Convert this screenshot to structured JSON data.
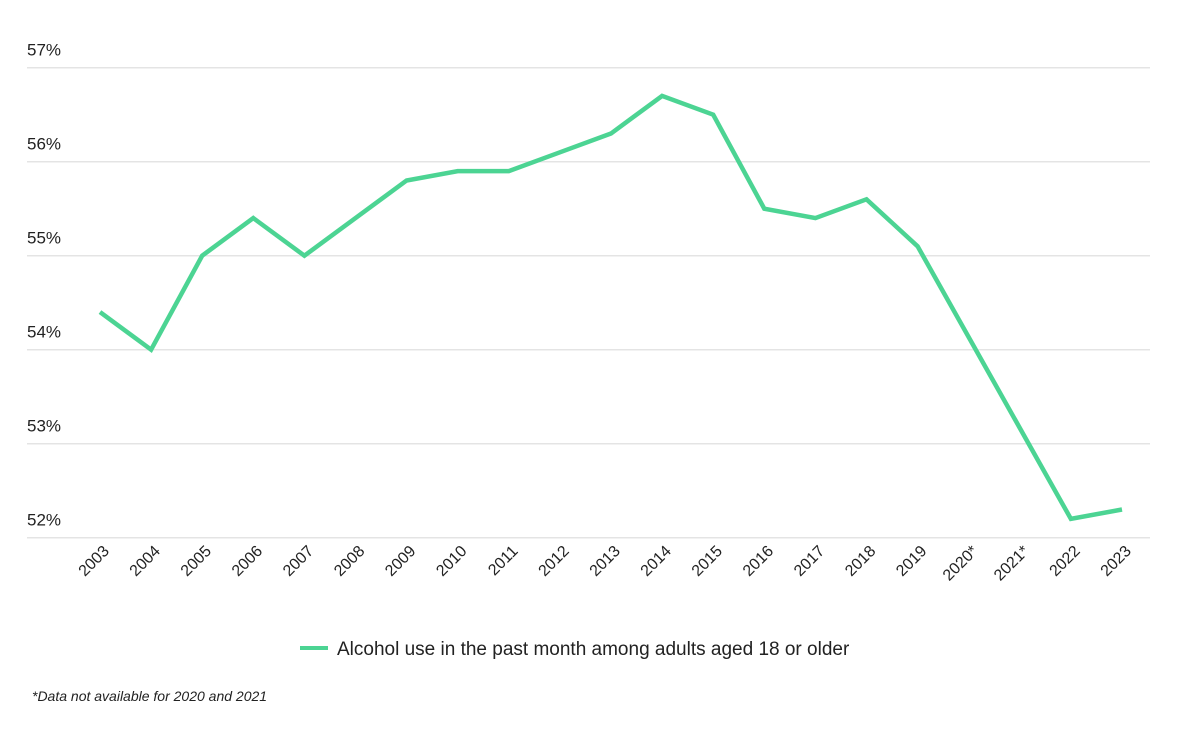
{
  "chart_data": {
    "type": "line",
    "title": "",
    "xlabel": "",
    "ylabel": "",
    "categories": [
      "2003",
      "2004",
      "2005",
      "2006",
      "2007",
      "2008",
      "2009",
      "2010",
      "2011",
      "2012",
      "2013",
      "2014",
      "2015",
      "2016",
      "2017",
      "2018",
      "2019",
      "2020*",
      "2021*",
      "2022",
      "2023"
    ],
    "series": [
      {
        "name": "Alcohol use in the past month among adults aged 18 or older",
        "color": "#4cd493",
        "values": [
          54.4,
          54.0,
          55.0,
          55.4,
          55.0,
          55.4,
          55.8,
          55.9,
          55.9,
          56.1,
          56.3,
          56.7,
          56.5,
          55.5,
          55.4,
          55.6,
          55.1,
          null,
          null,
          52.2,
          52.3
        ]
      }
    ],
    "ylim": [
      52,
      57
    ],
    "yticks": [
      52,
      53,
      54,
      55,
      56,
      57
    ],
    "ytick_labels": [
      "52%",
      "53%",
      "54%",
      "55%",
      "56%",
      "57%"
    ],
    "grid": true,
    "legend_position": "bottom-center",
    "footnote": "*Data not available for 2020 and 2021"
  }
}
